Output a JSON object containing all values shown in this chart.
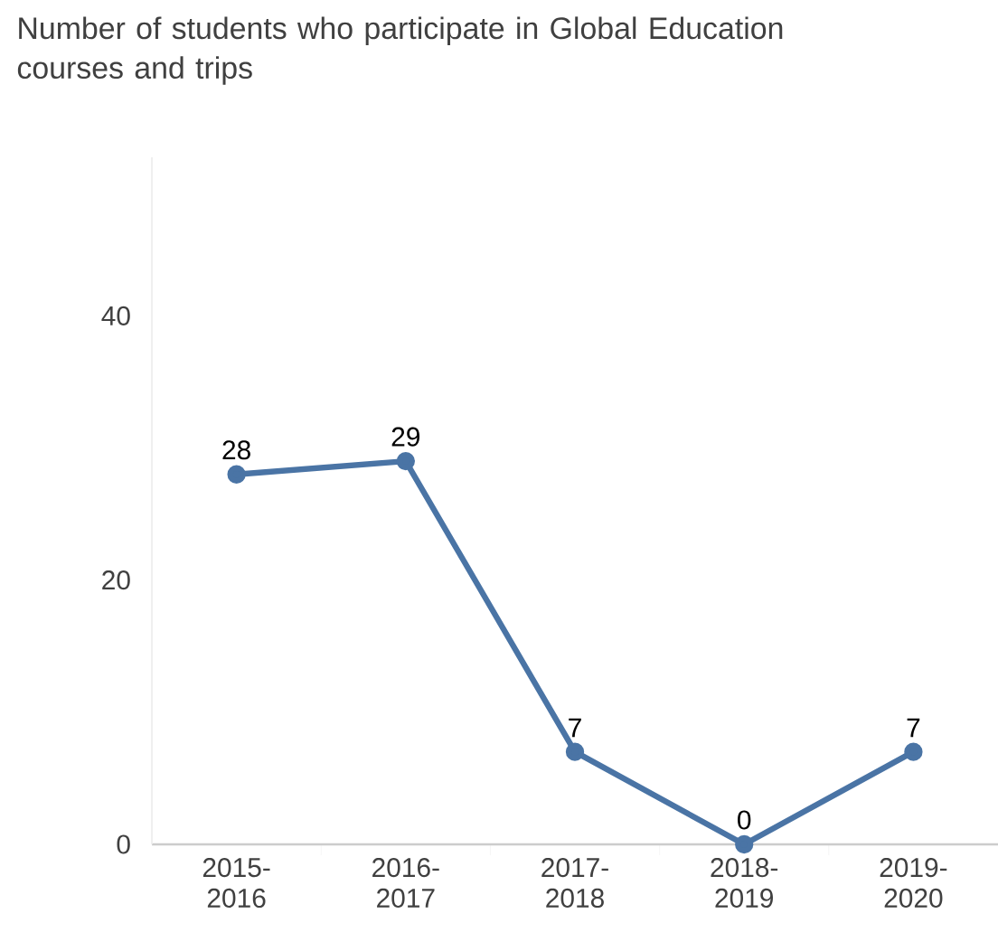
{
  "chart_data": {
    "type": "line",
    "title": "Number of students who participate in Global Education courses and trips",
    "categories": [
      "2015-2016",
      "2016-2017",
      "2017-2018",
      "2018-2019",
      "2019-2020"
    ],
    "values": [
      28,
      29,
      7,
      0,
      7
    ],
    "color": "#4a74a5",
    "ylim": [
      0,
      52
    ],
    "yticks": [
      0,
      20,
      40
    ],
    "grid": false,
    "marker": "circle",
    "line_style": "solid",
    "data_labels": true
  }
}
